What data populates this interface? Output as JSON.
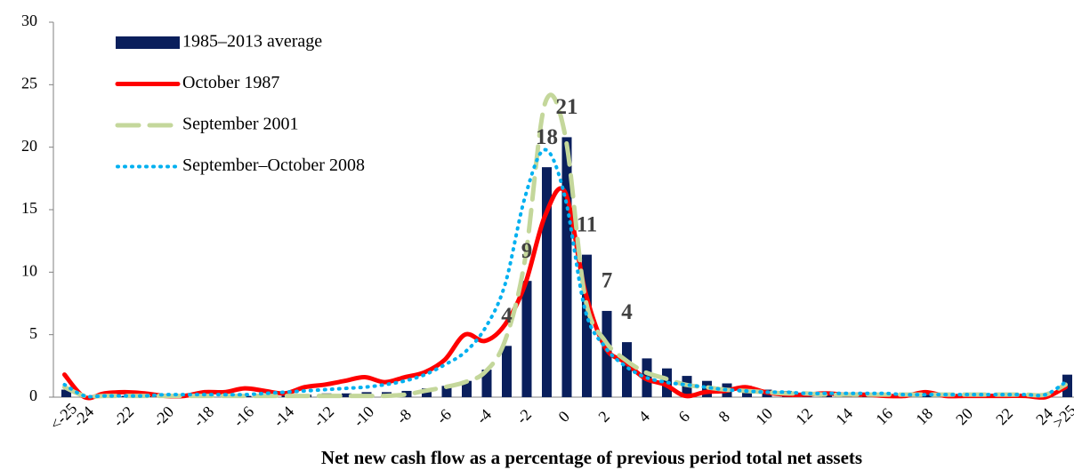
{
  "chart_data": {
    "type": "bar",
    "x_label": "Net new cash flow as a percentage of previous period total net assets",
    "categories": [
      "<-25",
      "-24",
      null,
      "-22",
      null,
      "-20",
      null,
      "-18",
      null,
      "-16",
      null,
      "-14",
      null,
      "-12",
      null,
      "-10",
      null,
      "-8",
      null,
      "-6",
      null,
      "-4",
      null,
      "-2",
      null,
      "0",
      null,
      "2",
      null,
      "4",
      null,
      "6",
      null,
      "8",
      null,
      "10",
      null,
      "12",
      null,
      "14",
      null,
      "16",
      null,
      "18",
      null,
      "20",
      null,
      "22",
      null,
      "24",
      ">25"
    ],
    "ylim": [
      0,
      30
    ],
    "yticks": [
      0,
      5,
      10,
      15,
      20,
      25,
      30
    ],
    "series": [
      {
        "name": "1985–2013 average",
        "type": "bar",
        "color": "#0a1f5c",
        "values": [
          0.6,
          0.1,
          0.1,
          0.1,
          0.1,
          0.1,
          0.1,
          0.1,
          0.1,
          0.1,
          0.2,
          0.2,
          0.2,
          0.3,
          0.3,
          0.4,
          0.4,
          0.5,
          0.7,
          0.9,
          1.3,
          2.2,
          4.1,
          9.3,
          18.4,
          20.8,
          11.4,
          6.9,
          4.4,
          3.1,
          2.3,
          1.7,
          1.3,
          1.1,
          0.9,
          0.6,
          0.5,
          0.4,
          0.3,
          0.3,
          0.2,
          0.2,
          0.2,
          0.2,
          0.1,
          0.1,
          0.1,
          0.1,
          0.1,
          0.1,
          1.8
        ],
        "value_labels": [
          null,
          null,
          null,
          null,
          null,
          null,
          null,
          null,
          null,
          null,
          null,
          null,
          null,
          null,
          null,
          null,
          null,
          null,
          null,
          null,
          null,
          null,
          "4",
          "9",
          "18",
          "21",
          "11",
          "7",
          "4",
          null,
          null,
          null,
          null,
          null,
          null,
          null,
          null,
          null,
          null,
          null,
          null,
          null,
          null,
          null,
          null,
          null,
          null,
          null,
          null,
          null,
          null
        ]
      },
      {
        "name": "October 1987",
        "type": "line",
        "style": "solid",
        "color": "#ff0000",
        "values": [
          1.8,
          0,
          0.3,
          0.4,
          0.3,
          0.1,
          0.1,
          0.4,
          0.4,
          0.7,
          0.5,
          0.3,
          0.8,
          1.0,
          1.3,
          1.6,
          1.2,
          1.6,
          2.0,
          3.0,
          5.0,
          4.5,
          5.8,
          9.0,
          14.5,
          16.4,
          8.5,
          4.0,
          2.8,
          1.5,
          1.0,
          0.1,
          0.4,
          0.5,
          0.8,
          0.4,
          0.2,
          0.2,
          0.3,
          0.2,
          0.2,
          0.1,
          0.1,
          0.4,
          0.1,
          0.1,
          0.1,
          0.1,
          0.1,
          0,
          0.8
        ]
      },
      {
        "name": "September 2001",
        "type": "line",
        "style": "dashed",
        "color": "#c4d79b",
        "values": [
          0.8,
          0.1,
          0.1,
          0.1,
          0.1,
          0.1,
          0.1,
          0.1,
          0.1,
          0.1,
          0.1,
          0.1,
          0.1,
          0.1,
          0.1,
          0.1,
          0.1,
          0.2,
          0.5,
          0.8,
          1.2,
          2.0,
          4.5,
          11.0,
          23.5,
          21.0,
          8.0,
          4.5,
          3.0,
          2.0,
          1.5,
          1.0,
          0.8,
          0.6,
          0.5,
          0.4,
          0.3,
          0.3,
          0.2,
          0.2,
          0.2,
          0.2,
          0.2,
          0.2,
          0.2,
          0.2,
          0.2,
          0.2,
          0.2,
          0.2,
          1.0
        ]
      },
      {
        "name": "September–October 2008",
        "type": "line",
        "style": "dotted",
        "color": "#00b0f0",
        "values": [
          1.0,
          0.1,
          0.1,
          0.1,
          0.1,
          0.2,
          0.2,
          0.2,
          0.2,
          0.2,
          0.3,
          0.4,
          0.5,
          0.6,
          0.7,
          0.8,
          1.0,
          1.3,
          1.8,
          2.6,
          3.6,
          5.5,
          9.0,
          16.0,
          19.8,
          16.0,
          7.0,
          4.0,
          2.5,
          1.6,
          1.2,
          1.0,
          0.8,
          0.6,
          0.5,
          0.4,
          0.4,
          0.3,
          0.3,
          0.3,
          0.3,
          0.3,
          0.2,
          0.2,
          0.2,
          0.2,
          0.2,
          0.2,
          0.2,
          0.2,
          1.2
        ]
      }
    ]
  }
}
